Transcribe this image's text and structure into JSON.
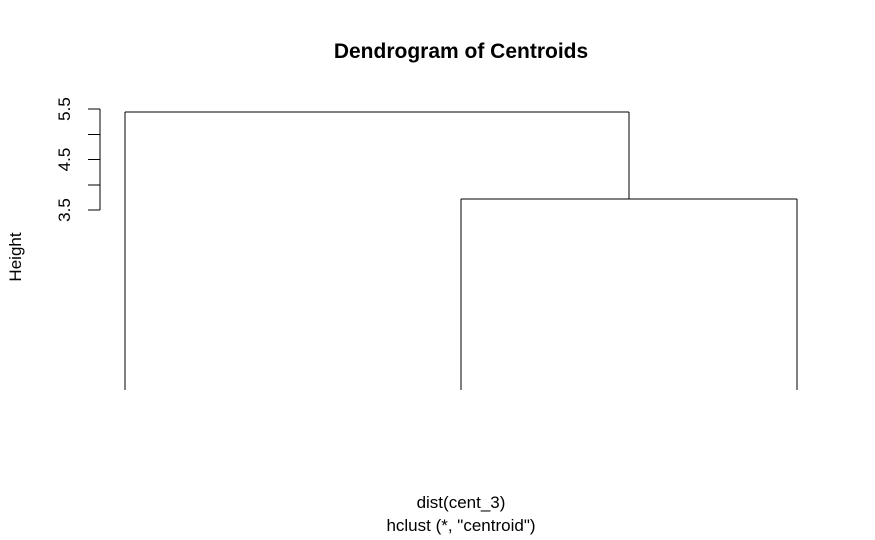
{
  "chart_data": {
    "type": "dendrogram",
    "title": "Dendrogram of Centroids",
    "xlabel": "dist(cent_3)",
    "sublabel": "hclust (*, \"centroid\")",
    "ylabel": "Height",
    "y_ticks": [
      3.5,
      4.0,
      4.5,
      5.0,
      5.5
    ],
    "y_tick_labels": [
      "3.5",
      "4.5",
      "5.5"
    ],
    "leaves": 3,
    "merges": [
      {
        "name": "merge-2-3",
        "left_leaf": 2,
        "right_leaf": 3,
        "height": 3.72
      },
      {
        "name": "merge-1-23",
        "left_leaf": 1,
        "right_merge": "merge-2-3",
        "height": 5.44
      }
    ],
    "leaf_bottom": 0.17
  }
}
